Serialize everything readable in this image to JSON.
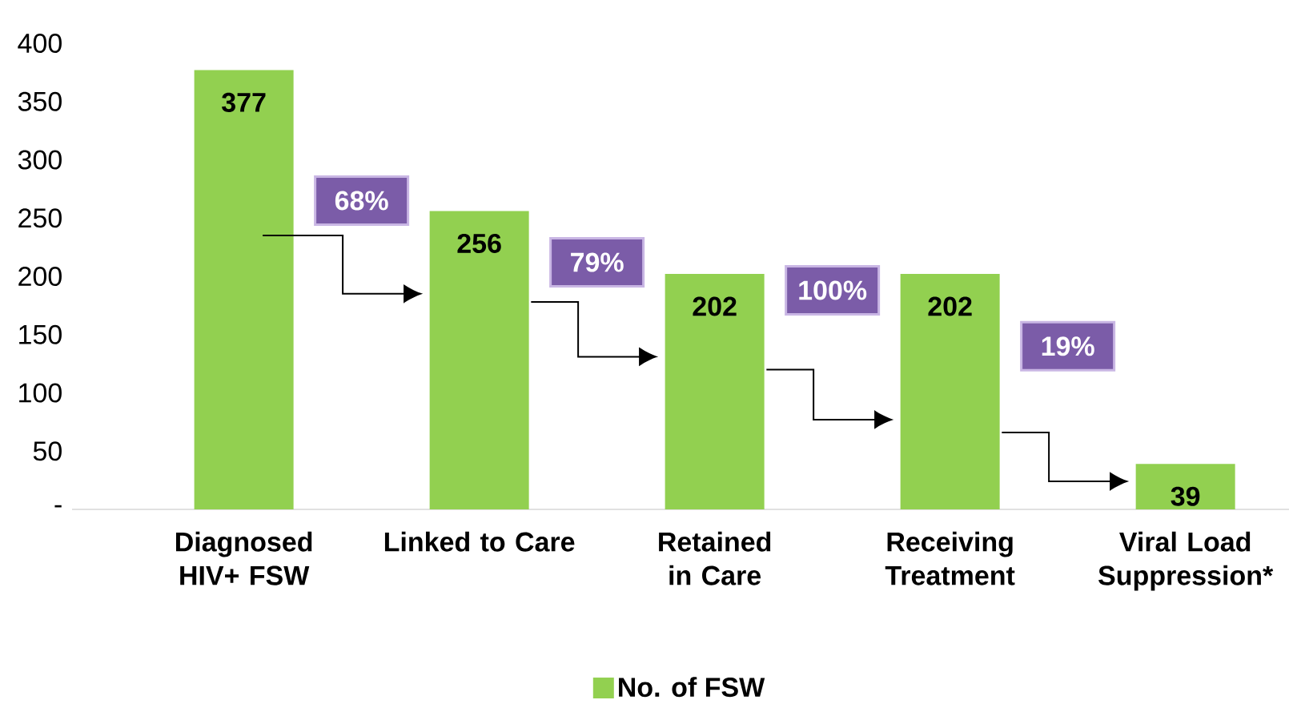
{
  "chart_data": {
    "type": "bar",
    "categories": [
      "Diagnosed HIV+ FSW",
      "Linked to Care",
      "Retained in Care",
      "Receiving Treatment",
      "Viral Load Suppression*"
    ],
    "series": [
      {
        "name": "No. of FSW",
        "color": "#92d050",
        "values": [
          377,
          256,
          202,
          202,
          39
        ]
      }
    ],
    "ylim": [
      0,
      400
    ],
    "yticks": [
      {
        "value": 0,
        "label": "-"
      },
      50,
      100,
      150,
      200,
      250,
      300,
      350,
      400
    ],
    "data_labels": true,
    "annotations": [
      "68%",
      "79%",
      "100%",
      "19%"
    ],
    "legend": "bottom",
    "grid": false
  }
}
